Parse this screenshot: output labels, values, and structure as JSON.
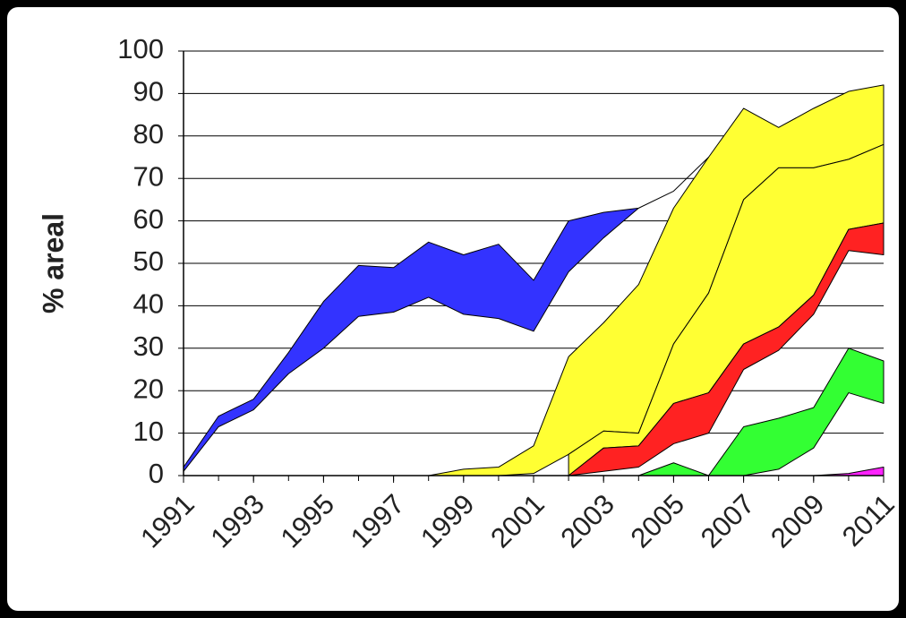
{
  "chart_data": {
    "type": "band",
    "ylabel": "% areal",
    "x": [
      1991,
      1992,
      1993,
      1994,
      1995,
      1996,
      1997,
      1998,
      1999,
      2000,
      2001,
      2002,
      2003,
      2004,
      2005,
      2006,
      2007,
      2008,
      2009,
      2010,
      2011
    ],
    "xlim": [
      1991,
      2011
    ],
    "xticks": [
      1991,
      1993,
      1995,
      1997,
      1999,
      2001,
      2003,
      2005,
      2007,
      2009,
      2011
    ],
    "ylim": [
      0,
      100
    ],
    "yticks": [
      0,
      10,
      20,
      30,
      40,
      50,
      60,
      70,
      80,
      90,
      100
    ],
    "grid": true,
    "series": [
      {
        "color": "#ffff33",
        "high": [
          null,
          null,
          null,
          null,
          null,
          null,
          null,
          0,
          1.5,
          2,
          7,
          28,
          36,
          45,
          63,
          75,
          86.5,
          82,
          86.5,
          90.5,
          92
        ],
        "low": [
          null,
          null,
          null,
          null,
          null,
          null,
          null,
          0,
          0,
          0,
          0.5,
          5,
          10.5,
          10,
          31,
          43,
          65,
          72.5,
          72.5,
          74.5,
          78
        ]
      },
      {
        "color": "#ffff33",
        "high": [
          null,
          null,
          null,
          null,
          null,
          null,
          null,
          null,
          null,
          null,
          null,
          5,
          10.5,
          10,
          31,
          43,
          65,
          72.5,
          72.5,
          74.5,
          78
        ],
        "low": [
          null,
          null,
          null,
          null,
          null,
          null,
          null,
          null,
          null,
          null,
          null,
          0,
          6.5,
          7,
          17,
          19.5,
          31,
          35,
          42.5,
          58,
          59.5
        ]
      },
      {
        "color": "#ff2222",
        "high": [
          null,
          null,
          null,
          null,
          null,
          null,
          null,
          null,
          null,
          null,
          null,
          0,
          6.5,
          7,
          17,
          19.5,
          31,
          35,
          42.5,
          58,
          59.5
        ],
        "low": [
          null,
          null,
          null,
          null,
          null,
          null,
          null,
          null,
          null,
          null,
          null,
          0,
          1,
          2,
          7.5,
          10,
          25,
          29.5,
          38,
          53,
          52
        ]
      },
      {
        "color": "#33ff33",
        "high": [
          null,
          null,
          null,
          null,
          null,
          null,
          null,
          null,
          null,
          null,
          null,
          null,
          null,
          0,
          3,
          0,
          11.5,
          13.5,
          16,
          30,
          27
        ],
        "low": [
          null,
          null,
          null,
          null,
          null,
          null,
          null,
          null,
          null,
          null,
          null,
          null,
          null,
          0,
          0,
          0,
          0,
          1.5,
          6.5,
          19.5,
          17
        ]
      },
      {
        "color": "#ff22ff",
        "high": [
          null,
          null,
          null,
          null,
          null,
          null,
          null,
          null,
          null,
          null,
          null,
          null,
          null,
          null,
          null,
          null,
          null,
          null,
          0,
          0.5,
          2
        ],
        "low": [
          null,
          null,
          null,
          null,
          null,
          null,
          null,
          null,
          null,
          null,
          null,
          null,
          null,
          null,
          null,
          null,
          null,
          null,
          0,
          0,
          0
        ]
      },
      {
        "color": "#3333ff",
        "high": [
          2,
          14,
          18,
          29,
          41,
          49.5,
          49,
          55,
          52,
          54.5,
          46,
          60,
          62,
          63,
          67,
          75,
          null,
          null,
          null,
          null,
          null
        ],
        "low": [
          1,
          11.5,
          15.5,
          24,
          30,
          37.5,
          38.5,
          42,
          38,
          37,
          34,
          48,
          56,
          63,
          67,
          75,
          null,
          null,
          null,
          null,
          null
        ]
      }
    ]
  }
}
